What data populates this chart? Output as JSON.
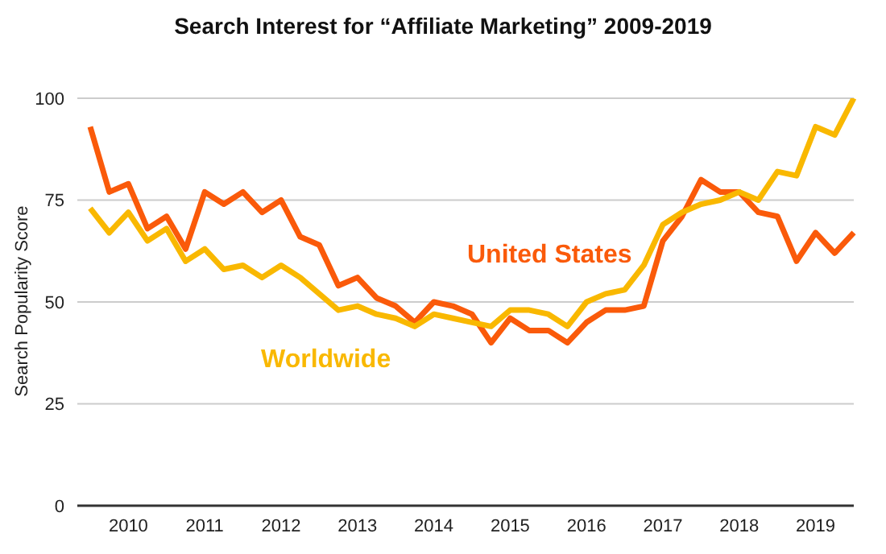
{
  "chart_data": {
    "type": "line",
    "title": "Search Interest for “Affiliate Marketing” 2009-2019",
    "ylabel": "Search Popularity Score",
    "categories": [
      null,
      null,
      "2010",
      null,
      null,
      null,
      "2011",
      null,
      null,
      null,
      "2012",
      null,
      null,
      null,
      "2013",
      null,
      null,
      null,
      "2014",
      null,
      null,
      null,
      "2015",
      null,
      null,
      null,
      "2016",
      null,
      null,
      null,
      "2017",
      null,
      null,
      null,
      "2018",
      null,
      null,
      null,
      "2019",
      null,
      null
    ],
    "series": [
      {
        "name": "United States",
        "color": "#fa5a0a",
        "values": [
          93,
          77,
          79,
          68,
          71,
          63,
          77,
          74,
          77,
          72,
          75,
          66,
          64,
          54,
          56,
          51,
          49,
          45,
          50,
          49,
          47,
          40,
          46,
          43,
          43,
          40,
          45,
          48,
          48,
          49,
          65,
          71,
          80,
          77,
          77,
          72,
          71,
          60,
          67,
          62,
          67
        ]
      },
      {
        "name": "Worldwide",
        "color": "#f9b800",
        "values": [
          73,
          67,
          72,
          65,
          68,
          60,
          63,
          58,
          59,
          56,
          59,
          56,
          52,
          48,
          49,
          47,
          46,
          44,
          47,
          46,
          45,
          44,
          48,
          48,
          47,
          44,
          50,
          52,
          53,
          59,
          69,
          72,
          74,
          75,
          77,
          75,
          82,
          81,
          93,
          91,
          100
        ]
      }
    ],
    "ylim": [
      0,
      100
    ],
    "yticks": [
      0,
      25,
      50,
      75,
      100
    ],
    "grid": "y",
    "legend": false,
    "marker": "none",
    "line_style": "solid"
  }
}
